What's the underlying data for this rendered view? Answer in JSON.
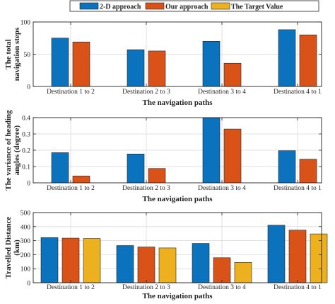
{
  "legend": [
    {
      "label": "2-D approach",
      "color": "#0b72bd"
    },
    {
      "label": "Our approach",
      "color": "#d95319"
    },
    {
      "label": "The Target Value",
      "color": "#edb120"
    }
  ],
  "chart_data": [
    {
      "type": "bar",
      "xlabel": "The navigation paths",
      "ylabel": [
        "The total",
        "navigation steps"
      ],
      "categories": [
        "Destination 1 to 2",
        "Destination 2 to 3",
        "Destination 3 to 4",
        "Destination 4 to 1"
      ],
      "ylim": [
        0,
        100
      ],
      "yticks": [
        0,
        50,
        100
      ],
      "ytick_labels": [
        "0",
        "50",
        "100"
      ],
      "grid": true,
      "series": [
        {
          "name": "2-D approach",
          "color": "#0b72bd",
          "values": [
            75,
            57,
            70,
            88
          ]
        },
        {
          "name": "Our approach",
          "color": "#d95319",
          "values": [
            69,
            55,
            36,
            80
          ]
        }
      ]
    },
    {
      "type": "bar",
      "xlabel": "The navigation paths",
      "ylabel": [
        "The variance of heading",
        "angles (degree)"
      ],
      "categories": [
        "Destination 1 to 2",
        "Destination 2 to 3",
        "Destination 3 to 4",
        "Destination 4 to 1"
      ],
      "ylim": [
        0,
        0.4
      ],
      "yticks": [
        0,
        0.1,
        0.2,
        0.3,
        0.4
      ],
      "ytick_labels": [
        "0",
        "0.1",
        "0.2",
        "0.3",
        "0.4"
      ],
      "grid": true,
      "series": [
        {
          "name": "2-D approach",
          "color": "#0b72bd",
          "values": [
            0.185,
            0.177,
            0.4,
            0.197
          ]
        },
        {
          "name": "Our approach",
          "color": "#d95319",
          "values": [
            0.042,
            0.088,
            0.33,
            0.145
          ]
        }
      ]
    },
    {
      "type": "bar",
      "xlabel": "The navigation paths",
      "ylabel": [
        "Travelled Distance",
        "(km)"
      ],
      "categories": [
        "Destination 1 to 2",
        "Destination 2 to 3",
        "Destination 3 to 4",
        "Destination 4 to 1"
      ],
      "ylim": [
        0,
        500
      ],
      "yticks": [
        0,
        100,
        200,
        300,
        400,
        500
      ],
      "ytick_labels": [
        "0",
        "100",
        "200",
        "300",
        "400",
        "500"
      ],
      "grid": true,
      "series": [
        {
          "name": "2-D approach",
          "color": "#0b72bd",
          "values": [
            322,
            265,
            280,
            410
          ]
        },
        {
          "name": "Our approach",
          "color": "#d95319",
          "values": [
            318,
            255,
            178,
            375
          ]
        },
        {
          "name": "The Target Value",
          "color": "#edb120",
          "values": [
            315,
            248,
            145,
            348
          ]
        }
      ]
    }
  ]
}
